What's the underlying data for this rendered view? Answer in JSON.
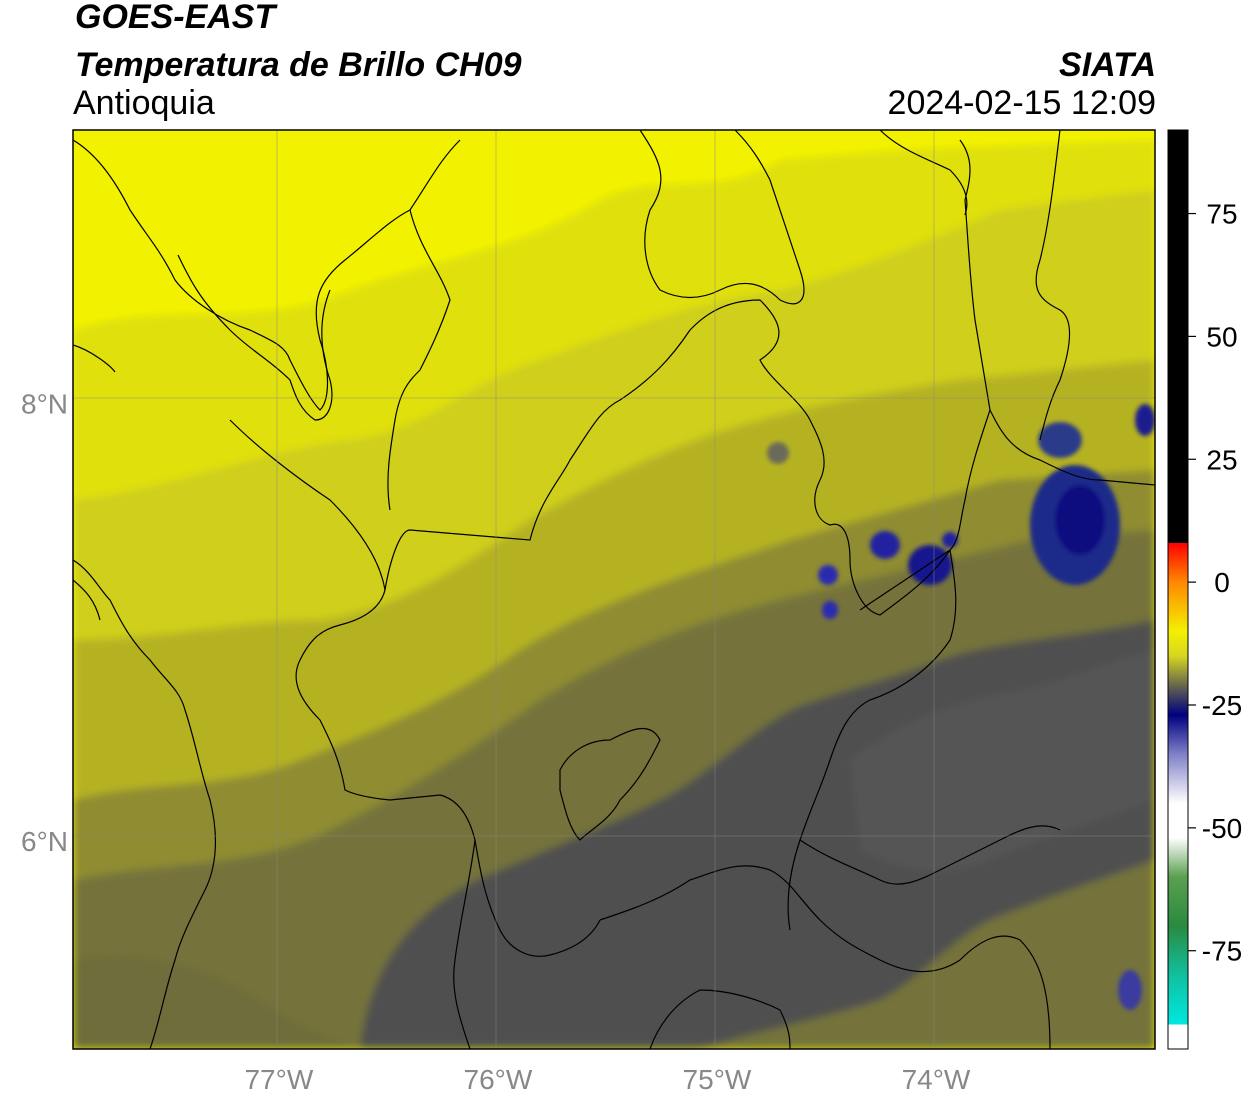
{
  "header": {
    "satellite": "GOES-EAST",
    "product": "Temperatura de Brillo CH09",
    "region": "Antioquia",
    "agency": "SIATA",
    "datetime": "2024-02-15 12:09"
  },
  "map": {
    "lon_range": [
      -77.94,
      -73.0
    ],
    "lat_range": [
      5.05,
      9.25
    ],
    "lon_ticks": [
      {
        "value": -77,
        "label": "77°W"
      },
      {
        "value": -76,
        "label": "76°W"
      },
      {
        "value": -75,
        "label": "75°W"
      },
      {
        "value": -74,
        "label": "74°W"
      }
    ],
    "lat_ticks": [
      {
        "value": 8,
        "label": "8°N"
      },
      {
        "value": 6,
        "label": "6°N"
      }
    ],
    "gridlines": true,
    "colors": {
      "bright_yellow": "#f2f200",
      "yellow": "#d6d618",
      "olive": "#a9a628",
      "dark_olive": "#74733a",
      "gray": "#4f4f4f",
      "cold_blue": "#1a1a9a"
    }
  },
  "colorbar": {
    "range": [
      -95,
      92
    ],
    "ticks": [
      {
        "value": 75,
        "label": "75"
      },
      {
        "value": 50,
        "label": "50"
      },
      {
        "value": 25,
        "label": "25"
      },
      {
        "value": 0,
        "label": "0"
      },
      {
        "value": -25,
        "label": "-25"
      },
      {
        "value": -50,
        "label": "-50"
      },
      {
        "value": -75,
        "label": "-75"
      }
    ],
    "stops": [
      {
        "value": 92,
        "color": "#000000"
      },
      {
        "value": 8,
        "color": "#000000"
      },
      {
        "value": 8,
        "color": "#ff0000"
      },
      {
        "value": 0,
        "color": "#ff8800"
      },
      {
        "value": -10,
        "color": "#f4f000"
      },
      {
        "value": -15,
        "color": "#d6d620"
      },
      {
        "value": -22,
        "color": "#555555"
      },
      {
        "value": -27,
        "color": "#000080"
      },
      {
        "value": -35,
        "color": "#8080c8"
      },
      {
        "value": -45,
        "color": "#ffffff"
      },
      {
        "value": -52,
        "color": "#ffffff"
      },
      {
        "value": -60,
        "color": "#5aa050"
      },
      {
        "value": -70,
        "color": "#2a8a40"
      },
      {
        "value": -80,
        "color": "#10c0a0"
      },
      {
        "value": -90,
        "color": "#00e8e0"
      },
      {
        "value": -90,
        "color": "#ffffff"
      },
      {
        "value": -95,
        "color": "#ffffff"
      }
    ]
  }
}
